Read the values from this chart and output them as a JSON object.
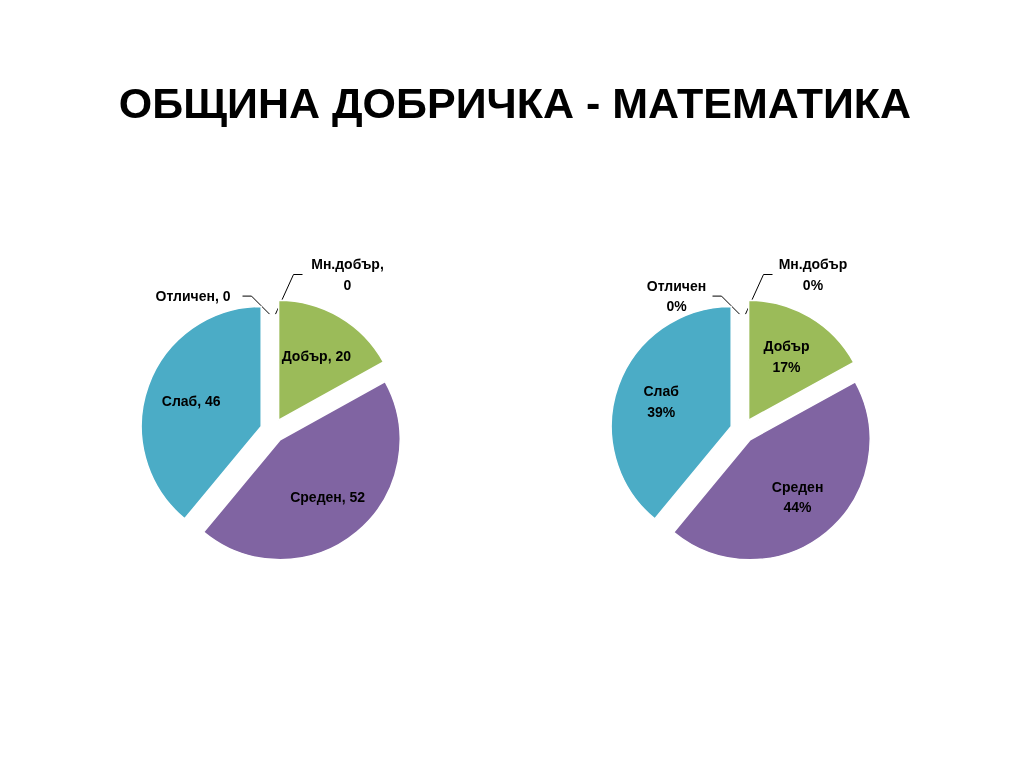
{
  "chart_data": [
    {
      "type": "pie",
      "title": "ОБЩИНА ДОБРИЧКА - МАТЕМАТИКА",
      "categories": [
        null,
        null,
        null,
        null,
        null
      ],
      "values": [
        0,
        0,
        20,
        52,
        46
      ],
      "colors": [
        null,
        null,
        "#9bbb59",
        "#8064a2",
        "#4bacc6"
      ],
      "value_labels": [
        "Отличен, 0",
        "Мн.добър, 0",
        "Добър, 20",
        "Среден, 52",
        "Слаб, 46"
      ]
    },
    {
      "type": "pie",
      "categories": [
        "Отличен",
        "Мн.добър",
        "Добър",
        "Среден",
        "Слаб"
      ],
      "values": [
        0,
        0,
        17,
        44,
        39
      ],
      "colors": [
        null,
        null,
        "#9bbb59",
        "#8064a2",
        "#4bacc6"
      ],
      "value_labels": [
        "0%",
        "0%",
        "17%",
        "44%",
        "39%"
      ]
    }
  ]
}
